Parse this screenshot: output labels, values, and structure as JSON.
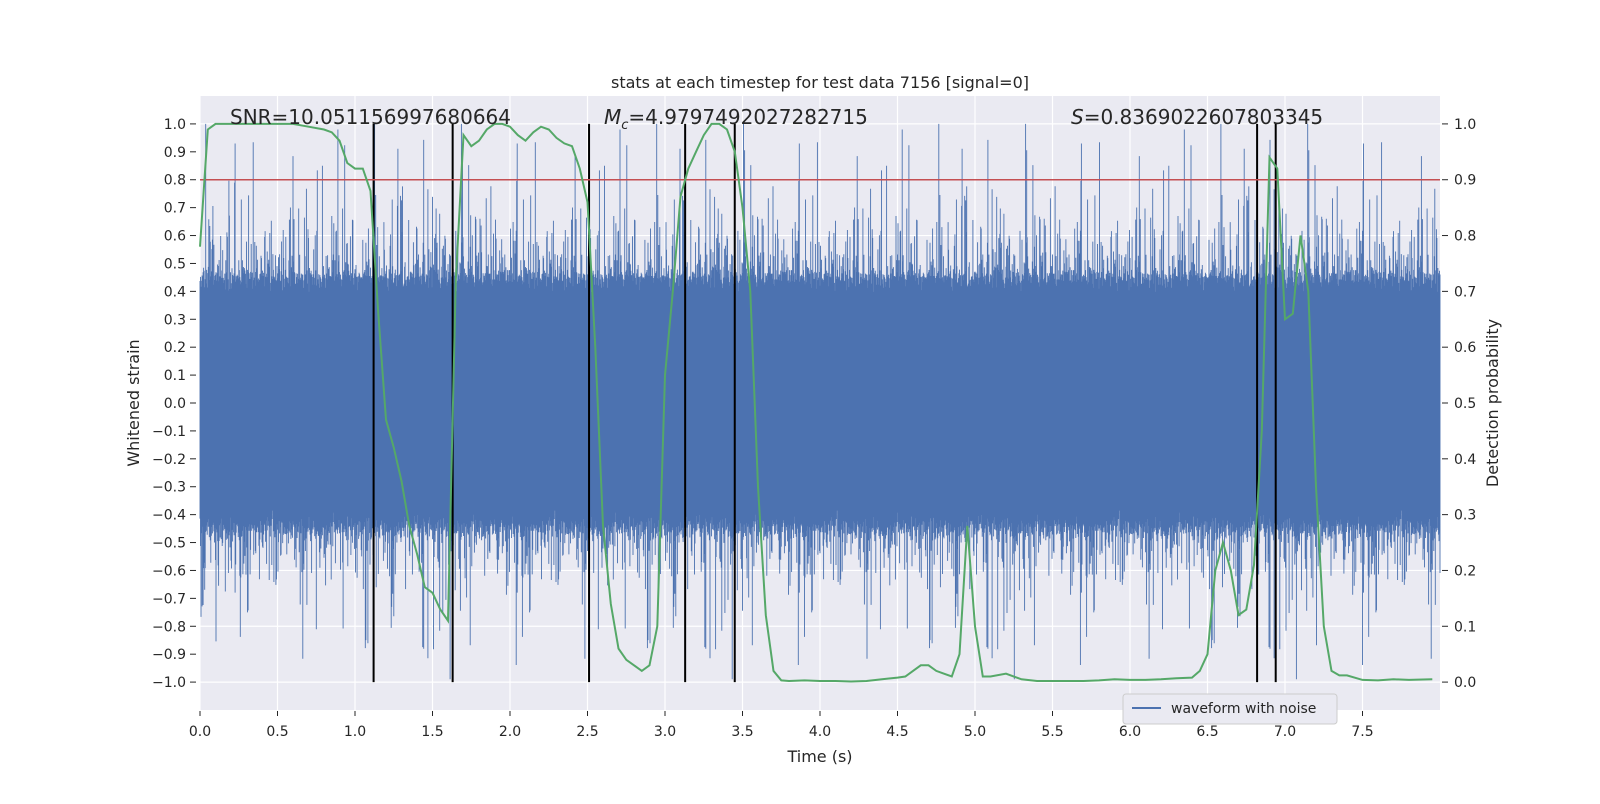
{
  "chart_data": {
    "type": "line",
    "title": "stats at each timestep for test data 7156 [signal=0]",
    "xlabel": "Time (s)",
    "ylabel_left": "Whitened strain",
    "ylabel_right": "Detection probability",
    "xlim": [
      0.0,
      8.0
    ],
    "ylim_left": [
      -1.1,
      1.1
    ],
    "ylim_right": [
      -0.05,
      1.05
    ],
    "x_ticks": [
      "0.0",
      "0.5",
      "1.0",
      "1.5",
      "2.0",
      "2.5",
      "3.0",
      "3.5",
      "4.0",
      "4.5",
      "5.0",
      "5.5",
      "6.0",
      "6.5",
      "7.0",
      "7.5"
    ],
    "y_ticks_left": [
      "1.0",
      "0.9",
      "0.8",
      "0.7",
      "0.6",
      "0.5",
      "0.4",
      "0.3",
      "0.2",
      "0.1",
      "0.0",
      "−0.1",
      "−0.2",
      "−0.3",
      "−0.4",
      "−0.5",
      "−0.6",
      "−0.7",
      "−0.8",
      "−0.9",
      "−1.0"
    ],
    "y_ticks_right": [
      "1.0",
      "0.9",
      "0.8",
      "0.7",
      "0.6",
      "0.5",
      "0.4",
      "0.3",
      "0.2",
      "0.1",
      "0.0"
    ],
    "annotations": {
      "snr": "SNR=10.051156997680664",
      "mc_symbol": "M",
      "mc_sub": "c",
      "mc_value": "=4.9797492027282715",
      "s_symbol": "S",
      "s_value": "=0.8369022607803345"
    },
    "threshold": {
      "axis": "right",
      "value": 0.9,
      "color": "#c44e52"
    },
    "event_markers_x": [
      1.12,
      1.63,
      2.51,
      3.13,
      3.45,
      6.82,
      6.94
    ],
    "waveform": {
      "name": "waveform with noise",
      "color": "#4c72b0",
      "time_range": [
        0.0,
        8.0
      ],
      "sample_rate_hz": 2048,
      "typical_envelope": [
        -0.45,
        0.45
      ],
      "peak_range": [
        -1.0,
        1.0
      ]
    },
    "probability": {
      "name": "Detection probability",
      "color": "#55a868",
      "x": [
        0.0,
        0.05,
        0.1,
        0.2,
        0.3,
        0.4,
        0.5,
        0.6,
        0.7,
        0.8,
        0.85,
        0.9,
        0.95,
        1.0,
        1.05,
        1.1,
        1.15,
        1.2,
        1.25,
        1.3,
        1.35,
        1.4,
        1.45,
        1.5,
        1.55,
        1.6,
        1.65,
        1.7,
        1.75,
        1.8,
        1.85,
        1.9,
        1.95,
        2.0,
        2.05,
        2.1,
        2.15,
        2.2,
        2.25,
        2.3,
        2.35,
        2.4,
        2.45,
        2.5,
        2.55,
        2.6,
        2.65,
        2.7,
        2.75,
        2.8,
        2.85,
        2.9,
        2.95,
        3.0,
        3.05,
        3.1,
        3.15,
        3.2,
        3.25,
        3.3,
        3.35,
        3.4,
        3.45,
        3.5,
        3.55,
        3.6,
        3.65,
        3.7,
        3.75,
        3.8,
        3.9,
        4.0,
        4.1,
        4.2,
        4.3,
        4.4,
        4.5,
        4.55,
        4.6,
        4.65,
        4.7,
        4.75,
        4.8,
        4.85,
        4.9,
        4.95,
        5.0,
        5.05,
        5.1,
        5.2,
        5.3,
        5.4,
        5.5,
        5.6,
        5.7,
        5.8,
        5.9,
        6.0,
        6.1,
        6.2,
        6.3,
        6.4,
        6.45,
        6.5,
        6.55,
        6.6,
        6.65,
        6.7,
        6.75,
        6.8,
        6.85,
        6.9,
        6.95,
        7.0,
        7.05,
        7.1,
        7.15,
        7.2,
        7.25,
        7.3,
        7.35,
        7.4,
        7.5,
        7.6,
        7.7,
        7.8,
        7.95
      ],
      "y": [
        0.78,
        0.99,
        1.0,
        1.0,
        1.0,
        1.0,
        1.0,
        1.0,
        0.995,
        0.99,
        0.985,
        0.97,
        0.93,
        0.92,
        0.92,
        0.88,
        0.66,
        0.47,
        0.42,
        0.36,
        0.28,
        0.23,
        0.17,
        0.16,
        0.13,
        0.11,
        0.72,
        0.98,
        0.96,
        0.97,
        0.99,
        1.0,
        1.0,
        0.995,
        0.98,
        0.97,
        0.985,
        0.995,
        0.99,
        0.975,
        0.965,
        0.96,
        0.92,
        0.86,
        0.6,
        0.28,
        0.14,
        0.06,
        0.04,
        0.03,
        0.02,
        0.03,
        0.1,
        0.55,
        0.7,
        0.87,
        0.92,
        0.95,
        0.98,
        1.0,
        1.0,
        0.99,
        0.95,
        0.85,
        0.7,
        0.35,
        0.12,
        0.02,
        0.003,
        0.002,
        0.003,
        0.002,
        0.002,
        0.001,
        0.002,
        0.005,
        0.008,
        0.01,
        0.02,
        0.03,
        0.03,
        0.02,
        0.015,
        0.01,
        0.05,
        0.28,
        0.1,
        0.01,
        0.01,
        0.015,
        0.005,
        0.002,
        0.002,
        0.002,
        0.002,
        0.003,
        0.005,
        0.004,
        0.004,
        0.005,
        0.007,
        0.008,
        0.02,
        0.05,
        0.2,
        0.25,
        0.2,
        0.12,
        0.13,
        0.21,
        0.45,
        0.94,
        0.92,
        0.65,
        0.66,
        0.8,
        0.7,
        0.35,
        0.1,
        0.02,
        0.012,
        0.012,
        0.004,
        0.003,
        0.005,
        0.004,
        0.005
      ]
    },
    "legend": {
      "location": "lower-right",
      "entries": [
        "waveform with noise"
      ]
    }
  }
}
